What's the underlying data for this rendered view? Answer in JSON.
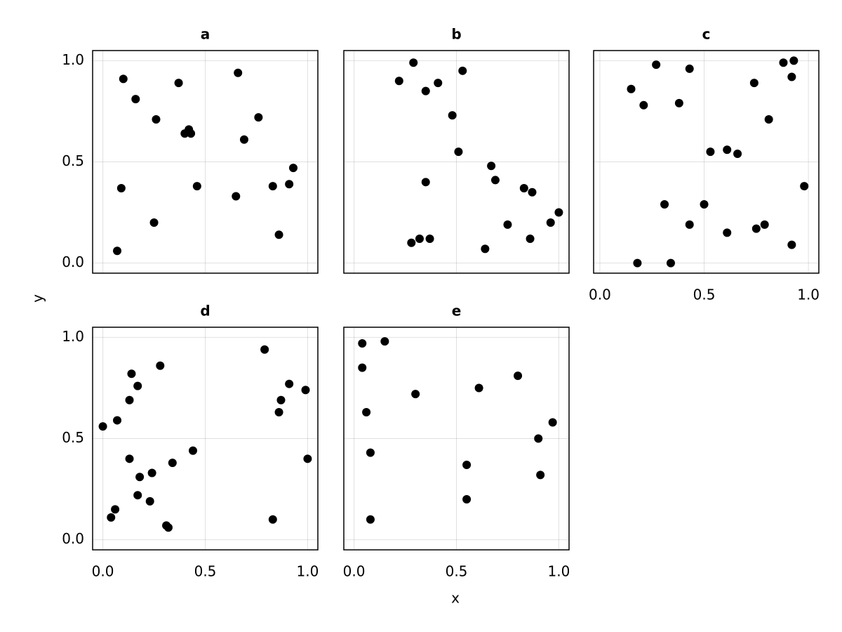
{
  "x_label": "x",
  "y_label": "y",
  "chart_data": [
    {
      "type": "scatter",
      "title": "a",
      "color": "#000000",
      "grid": true,
      "x_tick_labels_visible": false,
      "y_tick_labels_visible": true,
      "xlim": [
        -0.05,
        1.05
      ],
      "ylim": [
        -0.05,
        1.05
      ],
      "xticks": [
        {
          "value": 0,
          "label": "0.0"
        },
        {
          "value": 0.5,
          "label": "0.5"
        },
        {
          "value": 1,
          "label": "1.0"
        }
      ],
      "yticks": [
        {
          "value": 0,
          "label": "0.0"
        },
        {
          "value": 0.5,
          "label": "0.5"
        },
        {
          "value": 1,
          "label": "1.0"
        }
      ],
      "x": [
        0.1,
        0.16,
        0.26,
        0.37,
        0.4,
        0.42,
        0.43,
        0.66,
        0.76,
        0.69,
        0.93,
        0.91,
        0.83,
        0.46,
        0.09,
        0.65,
        0.25,
        0.86,
        0.07
      ],
      "y": [
        0.91,
        0.81,
        0.71,
        0.89,
        0.64,
        0.66,
        0.64,
        0.94,
        0.72,
        0.61,
        0.47,
        0.39,
        0.38,
        0.38,
        0.37,
        0.33,
        0.2,
        0.14,
        0.06
      ]
    },
    {
      "type": "scatter",
      "title": "b",
      "color": "#000000",
      "grid": true,
      "x_tick_labels_visible": false,
      "y_tick_labels_visible": false,
      "xlim": [
        -0.05,
        1.05
      ],
      "ylim": [
        -0.05,
        1.05
      ],
      "xticks": [
        {
          "value": 0,
          "label": "0.0"
        },
        {
          "value": 0.5,
          "label": "0.5"
        },
        {
          "value": 1,
          "label": "1.0"
        }
      ],
      "yticks": [
        {
          "value": 0,
          "label": "0.0"
        },
        {
          "value": 0.5,
          "label": "0.5"
        },
        {
          "value": 1,
          "label": "1.0"
        }
      ],
      "x": [
        0.29,
        0.22,
        0.41,
        0.35,
        0.53,
        0.48,
        0.51,
        0.67,
        0.69,
        0.35,
        0.83,
        0.87,
        1.0,
        0.96,
        0.75,
        0.86,
        0.32,
        0.37,
        0.28,
        0.64
      ],
      "y": [
        0.99,
        0.9,
        0.89,
        0.85,
        0.95,
        0.73,
        0.55,
        0.48,
        0.41,
        0.4,
        0.37,
        0.35,
        0.25,
        0.2,
        0.19,
        0.12,
        0.12,
        0.12,
        0.1,
        0.07
      ]
    },
    {
      "type": "scatter",
      "title": "c",
      "color": "#000000",
      "grid": true,
      "x_tick_labels_visible": true,
      "y_tick_labels_visible": false,
      "xlim": [
        -0.03,
        1.05
      ],
      "ylim": [
        -0.05,
        1.05
      ],
      "xticks": [
        {
          "value": 0,
          "label": "0.0"
        },
        {
          "value": 0.5,
          "label": "0.5"
        },
        {
          "value": 1,
          "label": "1.0"
        }
      ],
      "yticks": [
        {
          "value": 0,
          "label": "0.0"
        },
        {
          "value": 0.5,
          "label": "0.5"
        },
        {
          "value": 1,
          "label": "1.0"
        }
      ],
      "x": [
        0.27,
        0.43,
        0.15,
        0.21,
        0.38,
        0.74,
        0.88,
        0.93,
        0.92,
        0.81,
        0.53,
        0.61,
        0.66,
        0.98,
        0.31,
        0.5,
        0.43,
        0.61,
        0.75,
        0.79,
        0.92,
        0.18,
        0.34
      ],
      "y": [
        0.98,
        0.96,
        0.86,
        0.78,
        0.79,
        0.89,
        0.99,
        1.0,
        0.92,
        0.71,
        0.55,
        0.56,
        0.54,
        0.38,
        0.29,
        0.29,
        0.19,
        0.15,
        0.17,
        0.19,
        0.09,
        0.0,
        0.0
      ]
    },
    {
      "type": "scatter",
      "title": "d",
      "color": "#000000",
      "grid": true,
      "x_tick_labels_visible": true,
      "y_tick_labels_visible": true,
      "xlim": [
        -0.05,
        1.05
      ],
      "ylim": [
        -0.05,
        1.05
      ],
      "xticks": [
        {
          "value": 0,
          "label": "0.0"
        },
        {
          "value": 0.5,
          "label": "0.5"
        },
        {
          "value": 1,
          "label": "1.0"
        }
      ],
      "yticks": [
        {
          "value": 0,
          "label": "0.0"
        },
        {
          "value": 0.5,
          "label": "0.5"
        },
        {
          "value": 1,
          "label": "1.0"
        }
      ],
      "x": [
        0.0,
        0.07,
        0.13,
        0.17,
        0.14,
        0.28,
        0.79,
        0.91,
        0.99,
        0.87,
        0.86,
        0.44,
        0.13,
        1.0,
        0.34,
        0.24,
        0.18,
        0.17,
        0.23,
        0.06,
        0.04,
        0.83,
        0.31,
        0.32
      ],
      "y": [
        0.56,
        0.59,
        0.69,
        0.76,
        0.82,
        0.86,
        0.94,
        0.77,
        0.74,
        0.69,
        0.63,
        0.44,
        0.4,
        0.4,
        0.38,
        0.33,
        0.31,
        0.22,
        0.19,
        0.15,
        0.11,
        0.1,
        0.07,
        0.06
      ]
    },
    {
      "type": "scatter",
      "title": "e",
      "color": "#000000",
      "grid": true,
      "x_tick_labels_visible": true,
      "y_tick_labels_visible": false,
      "xlim": [
        -0.05,
        1.05
      ],
      "ylim": [
        -0.05,
        1.05
      ],
      "xticks": [
        {
          "value": 0,
          "label": "0.0"
        },
        {
          "value": 0.5,
          "label": "0.5"
        },
        {
          "value": 1,
          "label": "1.0"
        }
      ],
      "yticks": [
        {
          "value": 0,
          "label": "0.0"
        },
        {
          "value": 0.5,
          "label": "0.5"
        },
        {
          "value": 1,
          "label": "1.0"
        }
      ],
      "x": [
        0.04,
        0.15,
        0.04,
        0.06,
        0.3,
        0.61,
        0.8,
        0.97,
        0.9,
        0.91,
        0.08,
        0.55,
        0.55,
        0.08
      ],
      "y": [
        0.97,
        0.98,
        0.85,
        0.63,
        0.72,
        0.75,
        0.81,
        0.58,
        0.5,
        0.32,
        0.43,
        0.37,
        0.2,
        0.1
      ]
    }
  ]
}
